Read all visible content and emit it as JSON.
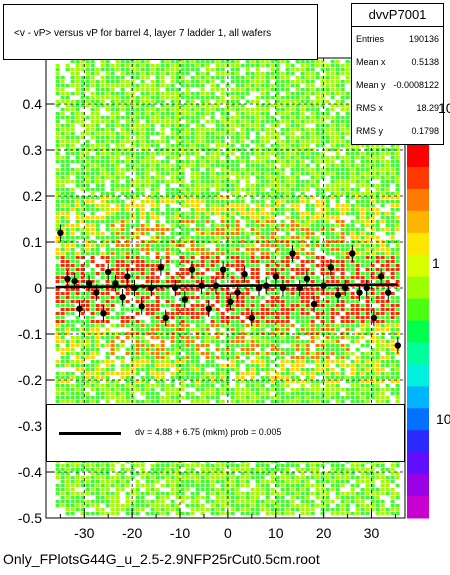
{
  "title": "<v - vP>       versus   vP for barrel 4, layer 7 ladder 1, all wafers",
  "stats": {
    "name": "dvvP7001",
    "rows": [
      {
        "label": "Entries",
        "value": "190136"
      },
      {
        "label": "Mean x",
        "value": "0.5138"
      },
      {
        "label": "Mean y",
        "value": "-0.0008122"
      },
      {
        "label": "RMS x",
        "value": "18.29"
      },
      {
        "label": "RMS y",
        "value": "0.1798"
      }
    ]
  },
  "legend": {
    "label": "dv =    4.88 +  6.75 (mkm) prob = 0.005"
  },
  "footer": "Only_FPlotsG44G_u_2.5-2.9NFP25rCut0.5cm.root",
  "zaxis": {
    "labels": [
      "10",
      "1",
      "10"
    ]
  },
  "chart_data": {
    "type": "scatter",
    "xlim": [
      -38,
      37
    ],
    "ylim": [
      -0.5,
      0.5
    ],
    "xticks": [
      -30,
      -20,
      -10,
      0,
      10,
      20,
      30
    ],
    "yticks": [
      -0.5,
      -0.4,
      -0.3,
      -0.2,
      -0.1,
      0,
      0.1,
      0.2,
      0.3,
      0.4
    ],
    "ytick_labels": [
      "-0.5",
      "-0.4",
      "-0.3",
      "-0.2",
      "-0.1",
      "0",
      "0.1",
      "0.2",
      "0.3",
      "0.4"
    ],
    "grid": true,
    "fit_line": {
      "intercept": 0.00488,
      "slope": 7.5e-05
    },
    "profile_points": [
      {
        "x": -35,
        "y": 0.12
      },
      {
        "x": -33.5,
        "y": 0.02
      },
      {
        "x": -32,
        "y": 0.015
      },
      {
        "x": -31,
        "y": -0.045
      },
      {
        "x": -29,
        "y": 0.01
      },
      {
        "x": -27.5,
        "y": -0.01
      },
      {
        "x": -26,
        "y": -0.055
      },
      {
        "x": -25,
        "y": 0.035
      },
      {
        "x": -23.5,
        "y": 0.01
      },
      {
        "x": -22,
        "y": -0.02
      },
      {
        "x": -21,
        "y": 0.025
      },
      {
        "x": -19.5,
        "y": 0.0
      },
      {
        "x": -18,
        "y": -0.04
      },
      {
        "x": -16,
        "y": 0.0
      },
      {
        "x": -14,
        "y": 0.045
      },
      {
        "x": -13,
        "y": -0.065
      },
      {
        "x": -11,
        "y": 0.0
      },
      {
        "x": -9,
        "y": -0.025
      },
      {
        "x": -7.5,
        "y": 0.04
      },
      {
        "x": -5.5,
        "y": 0.005
      },
      {
        "x": -4,
        "y": -0.045
      },
      {
        "x": -2.5,
        "y": 0.005
      },
      {
        "x": -1,
        "y": 0.04
      },
      {
        "x": 0.5,
        "y": -0.03
      },
      {
        "x": 2,
        "y": -0.01
      },
      {
        "x": 3.5,
        "y": 0.03
      },
      {
        "x": 5,
        "y": -0.065
      },
      {
        "x": 6.5,
        "y": 0.0
      },
      {
        "x": 8,
        "y": 0.005
      },
      {
        "x": 10,
        "y": 0.025
      },
      {
        "x": 11.5,
        "y": 0.0
      },
      {
        "x": 13.5,
        "y": 0.075
      },
      {
        "x": 15,
        "y": 0.0
      },
      {
        "x": 16.5,
        "y": 0.02
      },
      {
        "x": 18,
        "y": -0.035
      },
      {
        "x": 20,
        "y": 0.005
      },
      {
        "x": 21.5,
        "y": 0.045
      },
      {
        "x": 23,
        "y": -0.015
      },
      {
        "x": 24.5,
        "y": 0.0
      },
      {
        "x": 26,
        "y": 0.075
      },
      {
        "x": 27.5,
        "y": -0.01
      },
      {
        "x": 29,
        "y": 0.0
      },
      {
        "x": 30.5,
        "y": -0.065
      },
      {
        "x": 32,
        "y": 0.025
      },
      {
        "x": 33.5,
        "y": -0.01
      },
      {
        "x": 35.5,
        "y": -0.125
      }
    ]
  }
}
